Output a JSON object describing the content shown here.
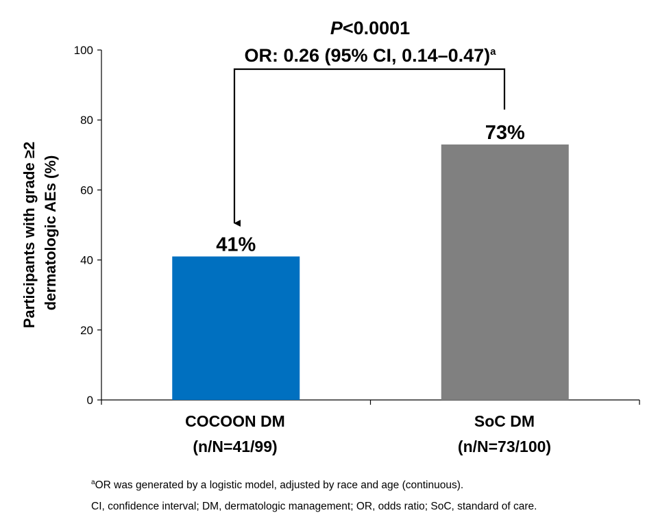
{
  "chart_data": {
    "type": "bar",
    "title": "",
    "xlabel": "",
    "ylabel": "Participants with grade ≥2 dermatologic AEs (%)",
    "ylabel_lines": [
      "Participants with grade ≥2",
      "dermatologic AEs (%)"
    ],
    "ylim": [
      0,
      100
    ],
    "yticks": [
      "0",
      "20",
      "40",
      "60",
      "80",
      "100"
    ],
    "grid": false,
    "categories": [
      "COCOON DM",
      "SoC DM"
    ],
    "category_sublabels": [
      "(n/N=41/99)",
      "(n/N=73/100)"
    ],
    "values": [
      41,
      73
    ],
    "data_labels": [
      "41%",
      "73%"
    ],
    "colors": [
      "#0070c0",
      "#808080"
    ],
    "comparison": {
      "p_prefix": "P",
      "p_value": "<0.0001",
      "or_text": "OR: 0.26 (95% CI, 0.14–0.47)",
      "or_superscript": "a"
    }
  },
  "footnotes": {
    "note_a_marker": "a",
    "note_a_text": "OR was generated by a logistic model, adjusted by race and age (continuous).",
    "abbreviations": "CI, confidence interval; DM, dermatologic management; OR, odds ratio; SoC, standard of care."
  }
}
